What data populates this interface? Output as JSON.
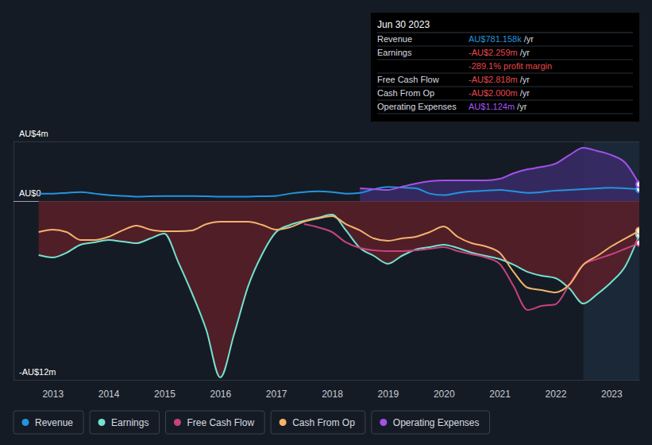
{
  "chart_data": {
    "type": "line",
    "x": [
      2012.75,
      2013,
      2013.25,
      2013.5,
      2013.75,
      2014,
      2014.25,
      2014.5,
      2014.75,
      2015,
      2015.25,
      2015.5,
      2015.75,
      2016,
      2016.25,
      2016.5,
      2016.75,
      2017,
      2017.25,
      2017.5,
      2017.75,
      2018,
      2018.25,
      2018.5,
      2018.75,
      2019,
      2019.25,
      2019.5,
      2019.75,
      2020,
      2020.25,
      2020.5,
      2020.75,
      2021,
      2021.25,
      2021.5,
      2021.75,
      2022,
      2022.25,
      2022.5,
      2022.75,
      2023,
      2023.25,
      2023.5
    ],
    "xlim": [
      2012.3,
      2023.5
    ],
    "xticks": [
      2013,
      2014,
      2015,
      2016,
      2017,
      2018,
      2019,
      2020,
      2021,
      2022,
      2023
    ],
    "ylim": [
      -12,
      4
    ],
    "yticks": [
      {
        "value": 4,
        "label": "AU$4m"
      },
      {
        "value": 0,
        "label": "AU$0"
      },
      {
        "value": -12,
        "label": "-AU$12m"
      }
    ],
    "grid": true,
    "legend": "bottom",
    "shaded_range": [
      2022.5,
      2023.5
    ],
    "series": [
      {
        "name": "Revenue",
        "color": "#2394df",
        "type": "line",
        "values": [
          0.5,
          0.5,
          0.55,
          0.6,
          0.5,
          0.4,
          0.35,
          0.3,
          0.32,
          0.33,
          0.33,
          0.33,
          0.32,
          0.3,
          0.3,
          0.3,
          0.32,
          0.35,
          0.5,
          0.6,
          0.65,
          0.6,
          0.5,
          0.55,
          0.8,
          0.95,
          0.9,
          0.85,
          0.5,
          0.4,
          0.55,
          0.65,
          0.7,
          0.75,
          0.65,
          0.55,
          0.6,
          0.7,
          0.75,
          0.8,
          0.85,
          0.9,
          0.85,
          0.781
        ]
      },
      {
        "name": "Earnings",
        "color": "#72e2d0",
        "type": "area",
        "values": [
          -3.63,
          -3.79,
          -3.47,
          -2.93,
          -2.77,
          -2.61,
          -2.72,
          -2.83,
          -2.51,
          -2.19,
          -4.11,
          -6.24,
          -8.64,
          -11.84,
          -8.91,
          -5.71,
          -3.57,
          -2.08,
          -1.6,
          -1.33,
          -1.12,
          -0.91,
          -1.97,
          -3.15,
          -3.68,
          -4.21,
          -3.68,
          -3.25,
          -3.09,
          -2.93,
          -3.15,
          -3.47,
          -3.68,
          -3.89,
          -4.27,
          -4.75,
          -5.01,
          -5.17,
          -5.87,
          -6.88,
          -6.24,
          -5.44,
          -4.37,
          -2.259
        ]
      },
      {
        "name": "Free Cash Flow",
        "color": "#c6427d",
        "type": "line",
        "values": [
          null,
          null,
          null,
          null,
          null,
          null,
          null,
          null,
          null,
          null,
          null,
          null,
          null,
          null,
          null,
          null,
          null,
          null,
          null,
          -1.55,
          -1.76,
          -2.08,
          -2.77,
          -3.15,
          -3.31,
          -3.36,
          -3.36,
          -3.31,
          -3.2,
          -3.09,
          -3.36,
          -3.57,
          -3.79,
          -4.21,
          -5.71,
          -7.31,
          -7.04,
          -6.93,
          -5.6,
          -4.27,
          -3.89,
          -3.57,
          -3.2,
          -2.818
        ]
      },
      {
        "name": "Cash From Op",
        "color": "#f2b36c",
        "type": "line",
        "values": [
          -2.08,
          -1.92,
          -2.08,
          -2.61,
          -2.61,
          -2.4,
          -1.97,
          -1.65,
          -1.92,
          -2.03,
          -2.03,
          -1.97,
          -1.55,
          -1.39,
          -1.39,
          -1.39,
          -1.6,
          -1.92,
          -1.76,
          -1.39,
          -1.17,
          -1.01,
          -1.55,
          -1.97,
          -2.51,
          -2.67,
          -2.51,
          -2.4,
          -2.08,
          -1.71,
          -2.4,
          -2.83,
          -3.04,
          -3.47,
          -4.75,
          -5.81,
          -5.97,
          -6.13,
          -5.6,
          -4.27,
          -3.68,
          -3.04,
          -2.51,
          -2.0
        ]
      },
      {
        "name": "Operating Expenses",
        "color": "#a351e8",
        "type": "area",
        "values": [
          null,
          null,
          null,
          null,
          null,
          null,
          null,
          null,
          null,
          null,
          null,
          null,
          null,
          null,
          null,
          null,
          null,
          null,
          null,
          null,
          null,
          null,
          null,
          0.85,
          0.8,
          0.75,
          0.96,
          1.17,
          1.33,
          1.39,
          1.39,
          1.39,
          1.39,
          1.49,
          1.87,
          2.13,
          2.29,
          2.51,
          3.09,
          3.57,
          3.36,
          3.09,
          2.56,
          1.124
        ]
      }
    ],
    "tooltip": {
      "title": "Jun 30 2023",
      "rows": [
        {
          "label": "Revenue",
          "value": "AU$781.158k",
          "unit": "/yr",
          "color": "#2394df"
        },
        {
          "label": "Earnings",
          "value": "-AU$2.259m",
          "unit": "/yr",
          "color": "#e8474c"
        },
        {
          "value": "-289.1% profit margin",
          "color": "#e8474c"
        },
        {
          "label": "Free Cash Flow",
          "value": "-AU$2.818m",
          "unit": "/yr",
          "color": "#e8474c"
        },
        {
          "label": "Cash From Op",
          "value": "-AU$2.000m",
          "unit": "/yr",
          "color": "#e8474c"
        },
        {
          "label": "Operating Expenses",
          "value": "AU$1.124m",
          "unit": "/yr",
          "color": "#a855f7"
        }
      ]
    }
  }
}
